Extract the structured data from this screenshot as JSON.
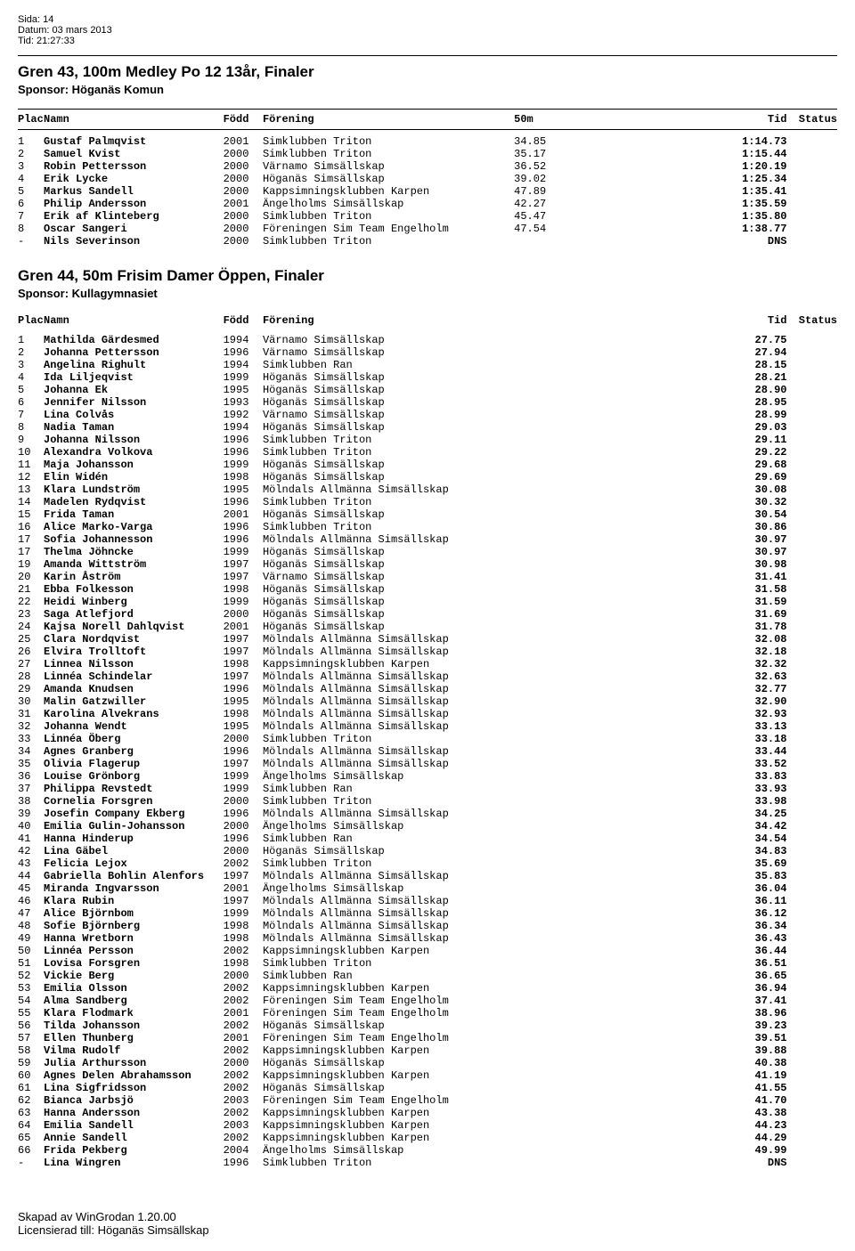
{
  "meta": {
    "sida_label": "Sida:",
    "sida_value": "14",
    "datum_label": "Datum:",
    "datum_value": "03 mars 2013",
    "tid_label": "Tid:",
    "tid_value": "21:27:33"
  },
  "events": [
    {
      "title": "Gren 43, 100m Medley Po 12 13år, Finaler",
      "sponsor": "Sponsor: Höganäs Komun",
      "split_label": "50m",
      "has_header_rule": true,
      "rows": [
        {
          "plac": "1",
          "name": "Gustaf Palmqvist",
          "fodd": "2001",
          "forening": "Simklubben Triton",
          "split": "34.85",
          "tid": "1:14.73",
          "status": ""
        },
        {
          "plac": "2",
          "name": "Samuel Kvist",
          "fodd": "2000",
          "forening": "Simklubben Triton",
          "split": "35.17",
          "tid": "1:15.44",
          "status": ""
        },
        {
          "plac": "3",
          "name": "Robin Pettersson",
          "fodd": "2000",
          "forening": "Värnamo Simsällskap",
          "split": "36.52",
          "tid": "1:20.19",
          "status": ""
        },
        {
          "plac": "4",
          "name": "Erik Lycke",
          "fodd": "2000",
          "forening": "Höganäs Simsällskap",
          "split": "39.02",
          "tid": "1:25.34",
          "status": ""
        },
        {
          "plac": "5",
          "name": "Markus Sandell",
          "fodd": "2000",
          "forening": "Kappsimningsklubben Karpen",
          "split": "47.89",
          "tid": "1:35.41",
          "status": ""
        },
        {
          "plac": "6",
          "name": "Philip Andersson",
          "fodd": "2001",
          "forening": "Ängelholms Simsällskap",
          "split": "42.27",
          "tid": "1:35.59",
          "status": ""
        },
        {
          "plac": "7",
          "name": "Erik af Klinteberg",
          "fodd": "2000",
          "forening": "Simklubben Triton",
          "split": "45.47",
          "tid": "1:35.80",
          "status": ""
        },
        {
          "plac": "8",
          "name": "Oscar Sangeri",
          "fodd": "2000",
          "forening": "Föreningen Sim Team Engelholm",
          "split": "47.54",
          "tid": "1:38.77",
          "status": ""
        },
        {
          "plac": "-",
          "name": "Nils Severinson",
          "fodd": "2000",
          "forening": "Simklubben Triton",
          "split": "",
          "tid": "DNS",
          "status": ""
        }
      ]
    },
    {
      "title": "Gren 44, 50m Frisim Damer Öppen, Finaler",
      "sponsor": "Sponsor: Kullagymnasiet",
      "split_label": "",
      "has_header_rule": false,
      "rows": [
        {
          "plac": "1",
          "name": "Mathilda Gärdesmed",
          "fodd": "1994",
          "forening": "Värnamo Simsällskap",
          "split": "",
          "tid": "27.75",
          "status": ""
        },
        {
          "plac": "2",
          "name": "Johanna Pettersson",
          "fodd": "1996",
          "forening": "Värnamo Simsällskap",
          "split": "",
          "tid": "27.94",
          "status": ""
        },
        {
          "plac": "3",
          "name": "Angelina Righult",
          "fodd": "1994",
          "forening": "Simklubben Ran",
          "split": "",
          "tid": "28.15",
          "status": ""
        },
        {
          "plac": "4",
          "name": "Ida Liljeqvist",
          "fodd": "1999",
          "forening": "Höganäs Simsällskap",
          "split": "",
          "tid": "28.21",
          "status": ""
        },
        {
          "plac": "5",
          "name": "Johanna Ek",
          "fodd": "1995",
          "forening": "Höganäs Simsällskap",
          "split": "",
          "tid": "28.90",
          "status": ""
        },
        {
          "plac": "6",
          "name": "Jennifer Nilsson",
          "fodd": "1993",
          "forening": "Höganäs Simsällskap",
          "split": "",
          "tid": "28.95",
          "status": ""
        },
        {
          "plac": "7",
          "name": "Lina Colvås",
          "fodd": "1992",
          "forening": "Värnamo Simsällskap",
          "split": "",
          "tid": "28.99",
          "status": ""
        },
        {
          "plac": "8",
          "name": "Nadia Taman",
          "fodd": "1994",
          "forening": "Höganäs Simsällskap",
          "split": "",
          "tid": "29.03",
          "status": ""
        },
        {
          "plac": "9",
          "name": "Johanna Nilsson",
          "fodd": "1996",
          "forening": "Simklubben Triton",
          "split": "",
          "tid": "29.11",
          "status": ""
        },
        {
          "plac": "10",
          "name": "Alexandra Volkova",
          "fodd": "1996",
          "forening": "Simklubben Triton",
          "split": "",
          "tid": "29.22",
          "status": ""
        },
        {
          "plac": "11",
          "name": "Maja Johansson",
          "fodd": "1999",
          "forening": "Höganäs Simsällskap",
          "split": "",
          "tid": "29.68",
          "status": ""
        },
        {
          "plac": "12",
          "name": "Elin Widén",
          "fodd": "1998",
          "forening": "Höganäs Simsällskap",
          "split": "",
          "tid": "29.69",
          "status": ""
        },
        {
          "plac": "13",
          "name": "Klara Lundström",
          "fodd": "1995",
          "forening": "Mölndals Allmänna Simsällskap",
          "split": "",
          "tid": "30.08",
          "status": ""
        },
        {
          "plac": "14",
          "name": "Madelen Rydqvist",
          "fodd": "1996",
          "forening": "Simklubben Triton",
          "split": "",
          "tid": "30.32",
          "status": ""
        },
        {
          "plac": "15",
          "name": "Frida Taman",
          "fodd": "2001",
          "forening": "Höganäs Simsällskap",
          "split": "",
          "tid": "30.54",
          "status": ""
        },
        {
          "plac": "16",
          "name": "Alice Marko-Varga",
          "fodd": "1996",
          "forening": "Simklubben Triton",
          "split": "",
          "tid": "30.86",
          "status": ""
        },
        {
          "plac": "17",
          "name": "Sofia Johannesson",
          "fodd": "1996",
          "forening": "Mölndals Allmänna Simsällskap",
          "split": "",
          "tid": "30.97",
          "status": ""
        },
        {
          "plac": "17",
          "name": "Thelma Jöhncke",
          "fodd": "1999",
          "forening": "Höganäs Simsällskap",
          "split": "",
          "tid": "30.97",
          "status": ""
        },
        {
          "plac": "19",
          "name": "Amanda Wittström",
          "fodd": "1997",
          "forening": "Höganäs Simsällskap",
          "split": "",
          "tid": "30.98",
          "status": ""
        },
        {
          "plac": "20",
          "name": "Karin Åström",
          "fodd": "1997",
          "forening": "Värnamo Simsällskap",
          "split": "",
          "tid": "31.41",
          "status": ""
        },
        {
          "plac": "21",
          "name": "Ebba Folkesson",
          "fodd": "1998",
          "forening": "Höganäs Simsällskap",
          "split": "",
          "tid": "31.58",
          "status": ""
        },
        {
          "plac": "22",
          "name": "Heidi Winberg",
          "fodd": "1999",
          "forening": "Höganäs Simsällskap",
          "split": "",
          "tid": "31.59",
          "status": ""
        },
        {
          "plac": "23",
          "name": "Saga Atlefjord",
          "fodd": "2000",
          "forening": "Höganäs Simsällskap",
          "split": "",
          "tid": "31.69",
          "status": ""
        },
        {
          "plac": "24",
          "name": "Kajsa Norell Dahlqvist",
          "fodd": "2001",
          "forening": "Höganäs Simsällskap",
          "split": "",
          "tid": "31.78",
          "status": ""
        },
        {
          "plac": "25",
          "name": "Clara Nordqvist",
          "fodd": "1997",
          "forening": "Mölndals Allmänna Simsällskap",
          "split": "",
          "tid": "32.08",
          "status": ""
        },
        {
          "plac": "26",
          "name": "Elvira Trolltoft",
          "fodd": "1997",
          "forening": "Mölndals Allmänna Simsällskap",
          "split": "",
          "tid": "32.18",
          "status": ""
        },
        {
          "plac": "27",
          "name": "Linnea Nilsson",
          "fodd": "1998",
          "forening": "Kappsimningsklubben Karpen",
          "split": "",
          "tid": "32.32",
          "status": ""
        },
        {
          "plac": "28",
          "name": "Linnéa Schindelar",
          "fodd": "1997",
          "forening": "Mölndals Allmänna Simsällskap",
          "split": "",
          "tid": "32.63",
          "status": ""
        },
        {
          "plac": "29",
          "name": "Amanda Knudsen",
          "fodd": "1996",
          "forening": "Mölndals Allmänna Simsällskap",
          "split": "",
          "tid": "32.77",
          "status": ""
        },
        {
          "plac": "30",
          "name": "Malin Gatzwiller",
          "fodd": "1995",
          "forening": "Mölndals Allmänna Simsällskap",
          "split": "",
          "tid": "32.90",
          "status": ""
        },
        {
          "plac": "31",
          "name": "Karolina Alvekrans",
          "fodd": "1998",
          "forening": "Mölndals Allmänna Simsällskap",
          "split": "",
          "tid": "32.93",
          "status": ""
        },
        {
          "plac": "32",
          "name": "Johanna Wendt",
          "fodd": "1995",
          "forening": "Mölndals Allmänna Simsällskap",
          "split": "",
          "tid": "33.13",
          "status": ""
        },
        {
          "plac": "33",
          "name": "Linnéa Öberg",
          "fodd": "2000",
          "forening": "Simklubben Triton",
          "split": "",
          "tid": "33.18",
          "status": ""
        },
        {
          "plac": "34",
          "name": "Agnes Granberg",
          "fodd": "1996",
          "forening": "Mölndals Allmänna Simsällskap",
          "split": "",
          "tid": "33.44",
          "status": ""
        },
        {
          "plac": "35",
          "name": "Olivia Flagerup",
          "fodd": "1997",
          "forening": "Mölndals Allmänna Simsällskap",
          "split": "",
          "tid": "33.52",
          "status": ""
        },
        {
          "plac": "36",
          "name": "Louise Grönborg",
          "fodd": "1999",
          "forening": "Ängelholms Simsällskap",
          "split": "",
          "tid": "33.83",
          "status": ""
        },
        {
          "plac": "37",
          "name": "Philippa Revstedt",
          "fodd": "1999",
          "forening": "Simklubben Ran",
          "split": "",
          "tid": "33.93",
          "status": ""
        },
        {
          "plac": "38",
          "name": "Cornelia Forsgren",
          "fodd": "2000",
          "forening": "Simklubben Triton",
          "split": "",
          "tid": "33.98",
          "status": ""
        },
        {
          "plac": "39",
          "name": "Josefin Company Ekberg",
          "fodd": "1996",
          "forening": "Mölndals Allmänna Simsällskap",
          "split": "",
          "tid": "34.25",
          "status": ""
        },
        {
          "plac": "40",
          "name": "Emilia Gulin-Johansson",
          "fodd": "2000",
          "forening": "Ängelholms Simsällskap",
          "split": "",
          "tid": "34.42",
          "status": ""
        },
        {
          "plac": "41",
          "name": "Hanna Hinderup",
          "fodd": "1996",
          "forening": "Simklubben Ran",
          "split": "",
          "tid": "34.54",
          "status": ""
        },
        {
          "plac": "42",
          "name": "Lina Gäbel",
          "fodd": "2000",
          "forening": "Höganäs Simsällskap",
          "split": "",
          "tid": "34.83",
          "status": ""
        },
        {
          "plac": "43",
          "name": "Felicia Lejox",
          "fodd": "2002",
          "forening": "Simklubben Triton",
          "split": "",
          "tid": "35.69",
          "status": ""
        },
        {
          "plac": "44",
          "name": "Gabriella Bohlin Alenfors",
          "fodd": "1997",
          "forening": "Mölndals Allmänna Simsällskap",
          "split": "",
          "tid": "35.83",
          "status": ""
        },
        {
          "plac": "45",
          "name": "Miranda Ingvarsson",
          "fodd": "2001",
          "forening": "Ängelholms Simsällskap",
          "split": "",
          "tid": "36.04",
          "status": ""
        },
        {
          "plac": "46",
          "name": "Klara Rubin",
          "fodd": "1997",
          "forening": "Mölndals Allmänna Simsällskap",
          "split": "",
          "tid": "36.11",
          "status": ""
        },
        {
          "plac": "47",
          "name": "Alice Björnbom",
          "fodd": "1999",
          "forening": "Mölndals Allmänna Simsällskap",
          "split": "",
          "tid": "36.12",
          "status": ""
        },
        {
          "plac": "48",
          "name": "Sofie Björnberg",
          "fodd": "1998",
          "forening": "Mölndals Allmänna Simsällskap",
          "split": "",
          "tid": "36.34",
          "status": ""
        },
        {
          "plac": "49",
          "name": "Hanna Wretborn",
          "fodd": "1998",
          "forening": "Mölndals Allmänna Simsällskap",
          "split": "",
          "tid": "36.43",
          "status": ""
        },
        {
          "plac": "50",
          "name": "Linnéa Persson",
          "fodd": "2002",
          "forening": "Kappsimningsklubben Karpen",
          "split": "",
          "tid": "36.44",
          "status": ""
        },
        {
          "plac": "51",
          "name": "Lovisa Forsgren",
          "fodd": "1998",
          "forening": "Simklubben Triton",
          "split": "",
          "tid": "36.51",
          "status": ""
        },
        {
          "plac": "52",
          "name": "Vickie Berg",
          "fodd": "2000",
          "forening": "Simklubben Ran",
          "split": "",
          "tid": "36.65",
          "status": ""
        },
        {
          "plac": "53",
          "name": "Emilia Olsson",
          "fodd": "2002",
          "forening": "Kappsimningsklubben Karpen",
          "split": "",
          "tid": "36.94",
          "status": ""
        },
        {
          "plac": "54",
          "name": "Alma Sandberg",
          "fodd": "2002",
          "forening": "Föreningen Sim Team Engelholm",
          "split": "",
          "tid": "37.41",
          "status": ""
        },
        {
          "plac": "55",
          "name": "Klara Flodmark",
          "fodd": "2001",
          "forening": "Föreningen Sim Team Engelholm",
          "split": "",
          "tid": "38.96",
          "status": ""
        },
        {
          "plac": "56",
          "name": "Tilda Johansson",
          "fodd": "2002",
          "forening": "Höganäs Simsällskap",
          "split": "",
          "tid": "39.23",
          "status": ""
        },
        {
          "plac": "57",
          "name": "Ellen Thunberg",
          "fodd": "2001",
          "forening": "Föreningen Sim Team Engelholm",
          "split": "",
          "tid": "39.51",
          "status": ""
        },
        {
          "plac": "58",
          "name": "Vilma Rudolf",
          "fodd": "2002",
          "forening": "Kappsimningsklubben Karpen",
          "split": "",
          "tid": "39.88",
          "status": ""
        },
        {
          "plac": "59",
          "name": "Julia Arthursson",
          "fodd": "2000",
          "forening": "Höganäs Simsällskap",
          "split": "",
          "tid": "40.38",
          "status": ""
        },
        {
          "plac": "60",
          "name": "Agnes Delen Abrahamsson",
          "fodd": "2002",
          "forening": "Kappsimningsklubben Karpen",
          "split": "",
          "tid": "41.19",
          "status": ""
        },
        {
          "plac": "61",
          "name": "Lina Sigfridsson",
          "fodd": "2002",
          "forening": "Höganäs Simsällskap",
          "split": "",
          "tid": "41.55",
          "status": ""
        },
        {
          "plac": "62",
          "name": "Bianca Jarbsjö",
          "fodd": "2003",
          "forening": "Föreningen Sim Team Engelholm",
          "split": "",
          "tid": "41.70",
          "status": ""
        },
        {
          "plac": "63",
          "name": "Hanna Andersson",
          "fodd": "2002",
          "forening": "Kappsimningsklubben Karpen",
          "split": "",
          "tid": "43.38",
          "status": ""
        },
        {
          "plac": "64",
          "name": "Emilia Sandell",
          "fodd": "2003",
          "forening": "Kappsimningsklubben Karpen",
          "split": "",
          "tid": "44.23",
          "status": ""
        },
        {
          "plac": "65",
          "name": "Annie Sandell",
          "fodd": "2002",
          "forening": "Kappsimningsklubben Karpen",
          "split": "",
          "tid": "44.29",
          "status": ""
        },
        {
          "plac": "66",
          "name": "Frida Pekberg",
          "fodd": "2004",
          "forening": "Ängelholms Simsällskap",
          "split": "",
          "tid": "49.99",
          "status": ""
        },
        {
          "plac": "-",
          "name": "Lina Wingren",
          "fodd": "1996",
          "forening": "Simklubben Triton",
          "split": "",
          "tid": "DNS",
          "status": ""
        }
      ]
    }
  ],
  "headers": {
    "plac": "Plac",
    "namn": "Namn",
    "fodd": "Född",
    "forening": "Förening",
    "tid": "Tid",
    "status": "Status"
  },
  "footer": {
    "line1": "Skapad av WinGrodan 1.20.00",
    "line2": "Licensierad till: Höganäs Simsällskap"
  }
}
